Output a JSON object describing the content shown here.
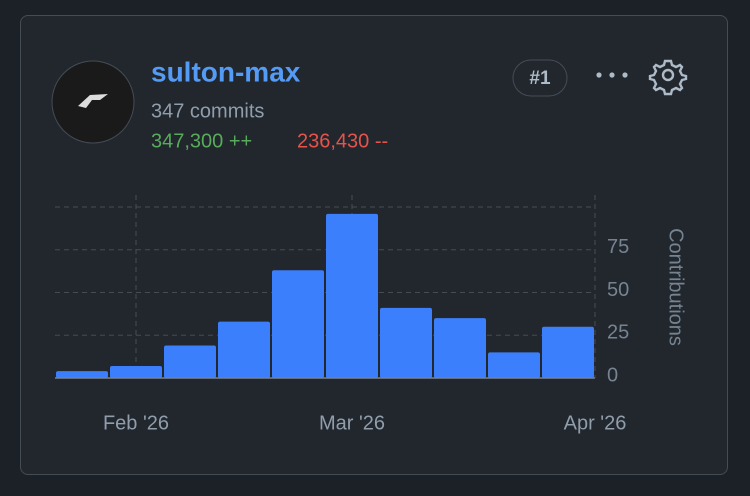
{
  "user": {
    "name": "sulton-max",
    "commits": "347 commits",
    "additions": "347,300 ++",
    "deletions": "236,430 --",
    "rank": "#1"
  },
  "chart_data": {
    "type": "bar",
    "y_label": "Contributions",
    "categories": [
      null,
      null,
      null,
      null,
      null,
      null,
      null,
      null,
      null,
      null
    ],
    "values": [
      4,
      7,
      19,
      33,
      63,
      96,
      41,
      35,
      15,
      30
    ],
    "color": "#3b7ffc",
    "ylim": [
      0,
      100
    ],
    "yticks": [
      0,
      25,
      50,
      75
    ],
    "grid": true,
    "xlim": [
      0,
      10
    ],
    "xticks": [
      {
        "value": 1.5,
        "label": "Feb '26"
      },
      {
        "value": 5.5,
        "label": "Mar '26"
      },
      {
        "value": 10,
        "label": "Apr '26"
      }
    ]
  }
}
